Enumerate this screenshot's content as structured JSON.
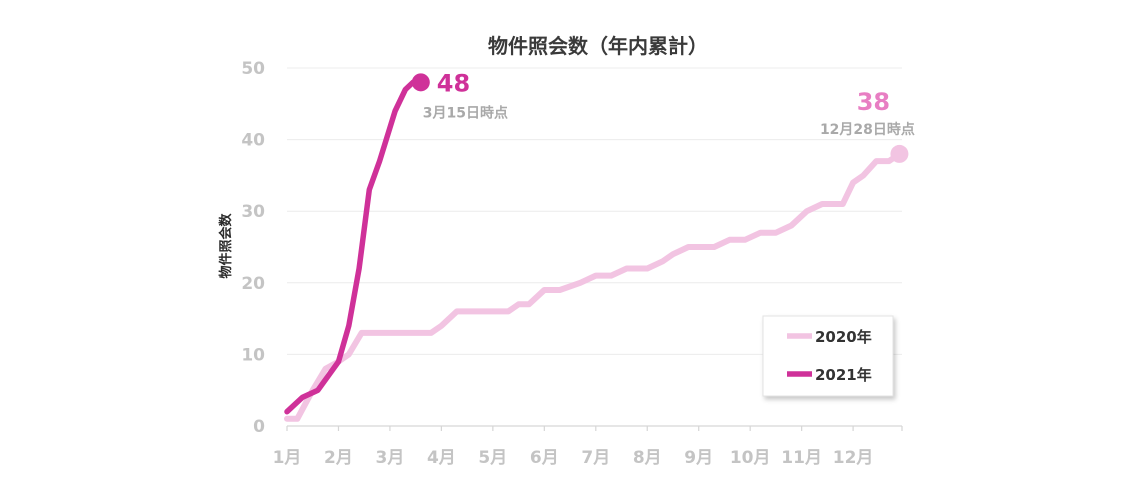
{
  "chart_data": {
    "type": "line",
    "title": "物件照会数（年内累計）",
    "xlabel": "",
    "ylabel": "物件照会数",
    "x_ticks": [
      "1月",
      "2月",
      "3月",
      "4月",
      "5月",
      "6月",
      "7月",
      "8月",
      "9月",
      "10月",
      "11月",
      "12月"
    ],
    "y_ticks": [
      "0",
      "10",
      "20",
      "30",
      "40",
      "50"
    ],
    "ylim": [
      0,
      50
    ],
    "grid": true,
    "legend_position": "bottom-right",
    "series": [
      {
        "name": "2020年",
        "color": "#f2c4e2",
        "x": [
          1.0,
          1.2,
          1.5,
          1.75,
          2.0,
          2.2,
          2.45,
          2.7,
          3.0,
          3.3,
          3.6,
          3.8,
          4.0,
          4.3,
          4.6,
          5.0,
          5.3,
          5.5,
          5.7,
          6.0,
          6.3,
          6.7,
          7.0,
          7.3,
          7.6,
          8.0,
          8.3,
          8.5,
          8.8,
          9.0,
          9.3,
          9.6,
          9.9,
          10.2,
          10.5,
          10.8,
          11.1,
          11.4,
          11.6,
          11.8,
          12.0,
          12.2,
          12.45,
          12.7,
          12.9
        ],
        "values": [
          1,
          1,
          5,
          8,
          9,
          10,
          13,
          13,
          13,
          13,
          13,
          13,
          14,
          16,
          16,
          16,
          16,
          17,
          17,
          19,
          19,
          20,
          21,
          21,
          22,
          22,
          23,
          24,
          25,
          25,
          25,
          26,
          26,
          27,
          27,
          28,
          30,
          31,
          31,
          31,
          34,
          35,
          37,
          37,
          38
        ],
        "annotation": {
          "value": "38",
          "date": "12月28日時点"
        }
      },
      {
        "name": "2021年",
        "color": "#cf3199",
        "x": [
          1.0,
          1.3,
          1.6,
          2.0,
          2.2,
          2.4,
          2.6,
          2.8,
          3.1,
          3.3,
          3.45,
          3.6
        ],
        "values": [
          2,
          4,
          5,
          9,
          14,
          22,
          33,
          37,
          44,
          47,
          48,
          48
        ],
        "annotation": {
          "value": "48",
          "date": "3月15日時点"
        }
      }
    ]
  }
}
